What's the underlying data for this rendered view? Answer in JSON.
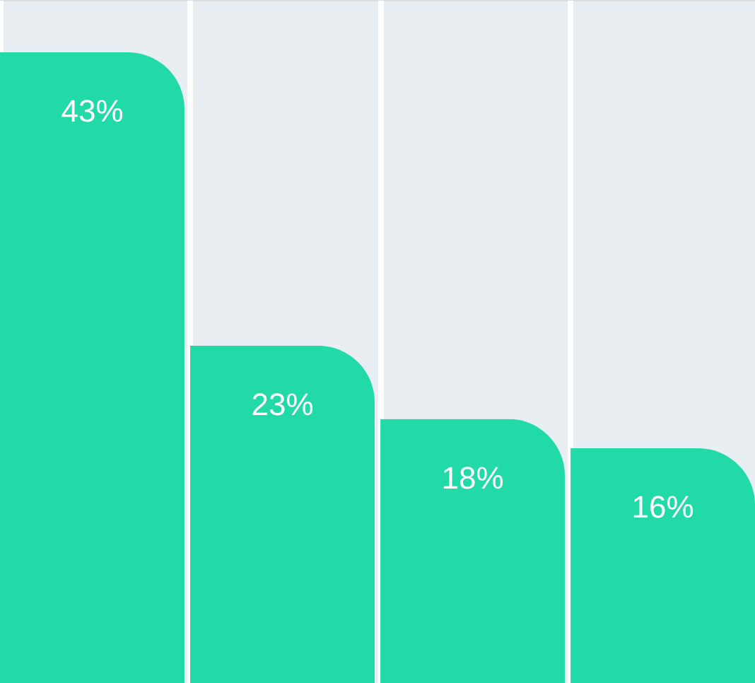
{
  "chart_data": {
    "type": "bar",
    "categories": [
      null,
      null,
      null,
      null
    ],
    "values": [
      43,
      23,
      18,
      16
    ],
    "value_labels": [
      "43%",
      "23%",
      "18%",
      "16%"
    ],
    "color": "#22d9a8",
    "grid": "x"
  }
}
